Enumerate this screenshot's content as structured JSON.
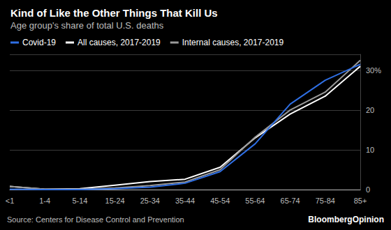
{
  "chart_data": {
    "type": "line",
    "title": "Kind of Like the Other Things That Kill Us",
    "subtitle": "Age group's share of total U.S. deaths",
    "source": "Source: Centers for Disease Control and Prevention",
    "credit": "BloombergOpinion",
    "categories": [
      "<1",
      "1-4",
      "5-14",
      "15-24",
      "25-34",
      "35-44",
      "45-54",
      "55-64",
      "65-74",
      "75-84",
      "85+"
    ],
    "series": [
      {
        "name": "Covid-19",
        "color": "#2f6fe4",
        "values": [
          0.1,
          0.0,
          0.0,
          0.2,
          0.6,
          1.6,
          4.5,
          11.5,
          21.5,
          27.5,
          31.5
        ]
      },
      {
        "name": "All causes, 2017-2019",
        "color": "#ffffff",
        "values": [
          0.8,
          0.1,
          0.2,
          1.1,
          2.0,
          2.6,
          5.6,
          13.0,
          19.0,
          23.5,
          31.0
        ]
      },
      {
        "name": "Internal causes, 2017-2019",
        "color": "#9a9a9a",
        "values": [
          0.8,
          0.1,
          0.1,
          0.4,
          1.0,
          1.9,
          5.0,
          13.2,
          20.0,
          24.5,
          32.5
        ]
      }
    ],
    "ylim": [
      0,
      34
    ],
    "yticks": [
      0,
      10,
      20,
      {
        "value": 30,
        "label": "30%"
      }
    ],
    "grid": true,
    "legend": "top-left"
  }
}
